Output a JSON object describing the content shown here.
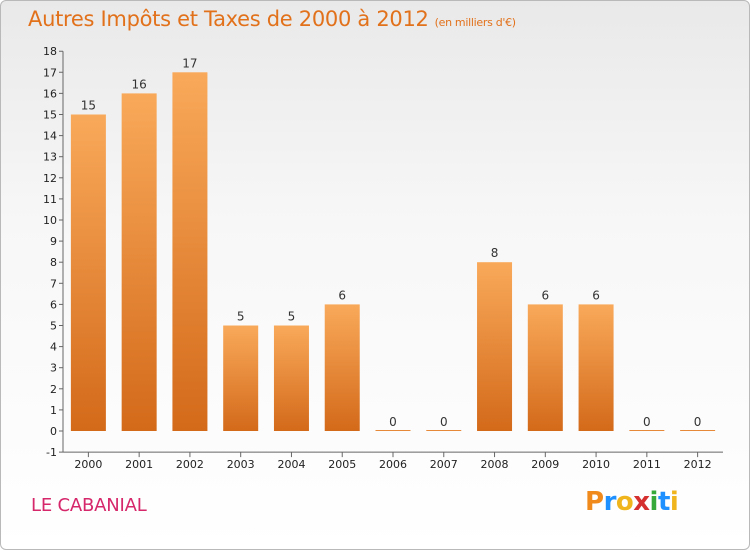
{
  "title": "Autres Impôts et Taxes de 2000 à 2012",
  "title_unit": "(en milliers d'€)",
  "city": "LE CABANIAL",
  "logo_letters": [
    "P",
    "r",
    "o",
    "x",
    "i",
    "t",
    "i"
  ],
  "logo_colors": [
    "#f08a1d",
    "#1e90ff",
    "#f0b51d",
    "#d52f2f",
    "#37a83a",
    "#1e90ff",
    "#f0b51d"
  ],
  "colors": {
    "bar_top": "#f9a95a",
    "bar_bottom": "#d36a1a",
    "accent": "#e2711b",
    "city": "#d6276b"
  },
  "chart_data": {
    "type": "bar",
    "categories": [
      "2000",
      "2001",
      "2002",
      "2003",
      "2004",
      "2005",
      "2006",
      "2007",
      "2008",
      "2009",
      "2010",
      "2011",
      "2012"
    ],
    "values": [
      15,
      16,
      17,
      5,
      5,
      6,
      0,
      0,
      8,
      6,
      6,
      0,
      0
    ],
    "yticks": [
      -1,
      0,
      1,
      2,
      3,
      4,
      5,
      6,
      7,
      8,
      9,
      10,
      11,
      12,
      13,
      14,
      15,
      16,
      17,
      18
    ],
    "ylim": [
      -1,
      18
    ],
    "grid": false,
    "legend": "none"
  }
}
